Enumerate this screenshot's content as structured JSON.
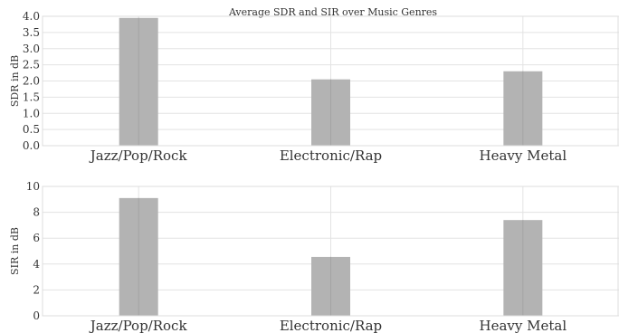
{
  "chart_data": [
    {
      "type": "bar",
      "title": "Average SDR and SIR over Music Genres",
      "xlabel": "",
      "ylabel": "SDR in dB",
      "categories": [
        "Jazz/Pop/Rock",
        "Electronic/Rap",
        "Heavy Metal"
      ],
      "values": [
        3.95,
        2.05,
        2.3
      ],
      "ylim": [
        0,
        4.0
      ],
      "yticks": [
        "0.0",
        "0.5",
        "1.0",
        "1.5",
        "2.0",
        "2.5",
        "3.0",
        "3.5",
        "4.0"
      ],
      "grid": true,
      "bar_color": "#b3b3b3"
    },
    {
      "type": "bar",
      "title": "",
      "xlabel": "",
      "ylabel": "SIR in dB",
      "categories": [
        "Jazz/Pop/Rock",
        "Electronic/Rap",
        "Heavy Metal"
      ],
      "values": [
        9.1,
        4.55,
        7.4
      ],
      "ylim": [
        0,
        10
      ],
      "yticks": [
        "0",
        "2",
        "4",
        "6",
        "8",
        "10"
      ],
      "grid": true,
      "bar_color": "#b3b3b3"
    }
  ]
}
